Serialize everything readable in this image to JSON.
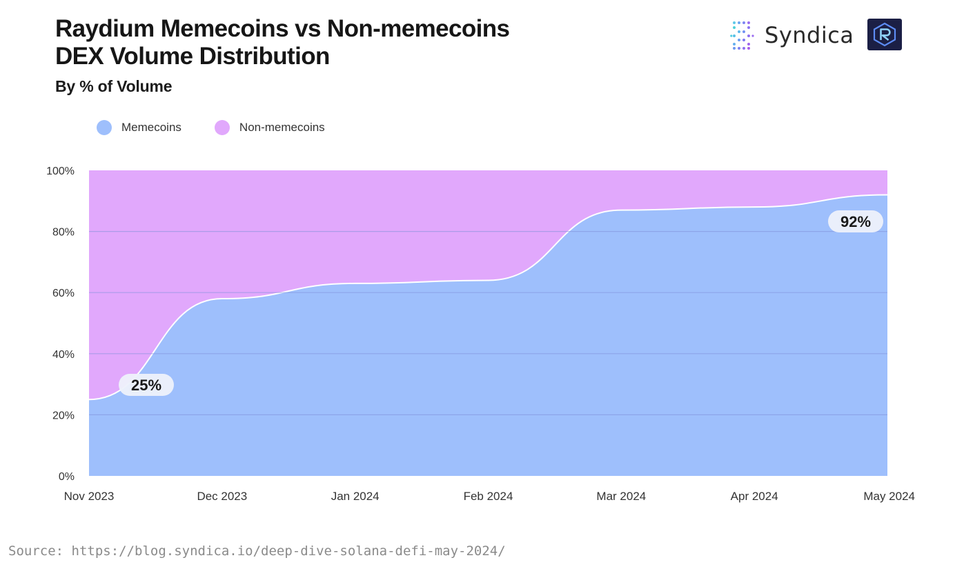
{
  "header": {
    "title_line1": "Raydium Memecoins vs Non-memecoins",
    "title_line2": "DEX Volume Distribution",
    "subtitle": "By % of Volume"
  },
  "brand": {
    "name": "Syndica",
    "mark_icon": "syndica-dots-icon",
    "partner_icon": "raydium-r-icon"
  },
  "legend": {
    "items": [
      {
        "label": "Memecoins",
        "color": "#9ebffc"
      },
      {
        "label": "Non-memecoins",
        "color": "#e1a8fc"
      }
    ],
    "placement": "top-left"
  },
  "chart_data": {
    "type": "area",
    "stacked": true,
    "normalized": true,
    "title": "Raydium Memecoins vs Non-memecoins DEX Volume Distribution",
    "subtitle": "By % of Volume",
    "xlabel": "",
    "ylabel": "",
    "x": [
      "Nov 2023",
      "Dec 2023",
      "Jan 2024",
      "Feb 2024",
      "Mar 2024",
      "Apr 2024",
      "May 2024"
    ],
    "ylim": [
      0,
      100
    ],
    "yticks": [
      "0%",
      "20%",
      "40%",
      "60%",
      "80%",
      "100%"
    ],
    "grid": true,
    "series": [
      {
        "name": "Memecoins",
        "color": "#9ebffc",
        "values": [
          25,
          58,
          63,
          64,
          87,
          88,
          92
        ]
      },
      {
        "name": "Non-memecoins",
        "color": "#e1a8fc",
        "values": [
          75,
          42,
          37,
          36,
          13,
          12,
          8
        ]
      }
    ],
    "annotations": [
      {
        "text": "25%",
        "x": "Nov 2023",
        "y": 25,
        "series": "Memecoins"
      },
      {
        "text": "92%",
        "x": "May 2024",
        "y": 92,
        "series": "Memecoins"
      }
    ]
  },
  "source": {
    "text": "Source: https://blog.syndica.io/deep-dive-solana-defi-may-2024/"
  }
}
